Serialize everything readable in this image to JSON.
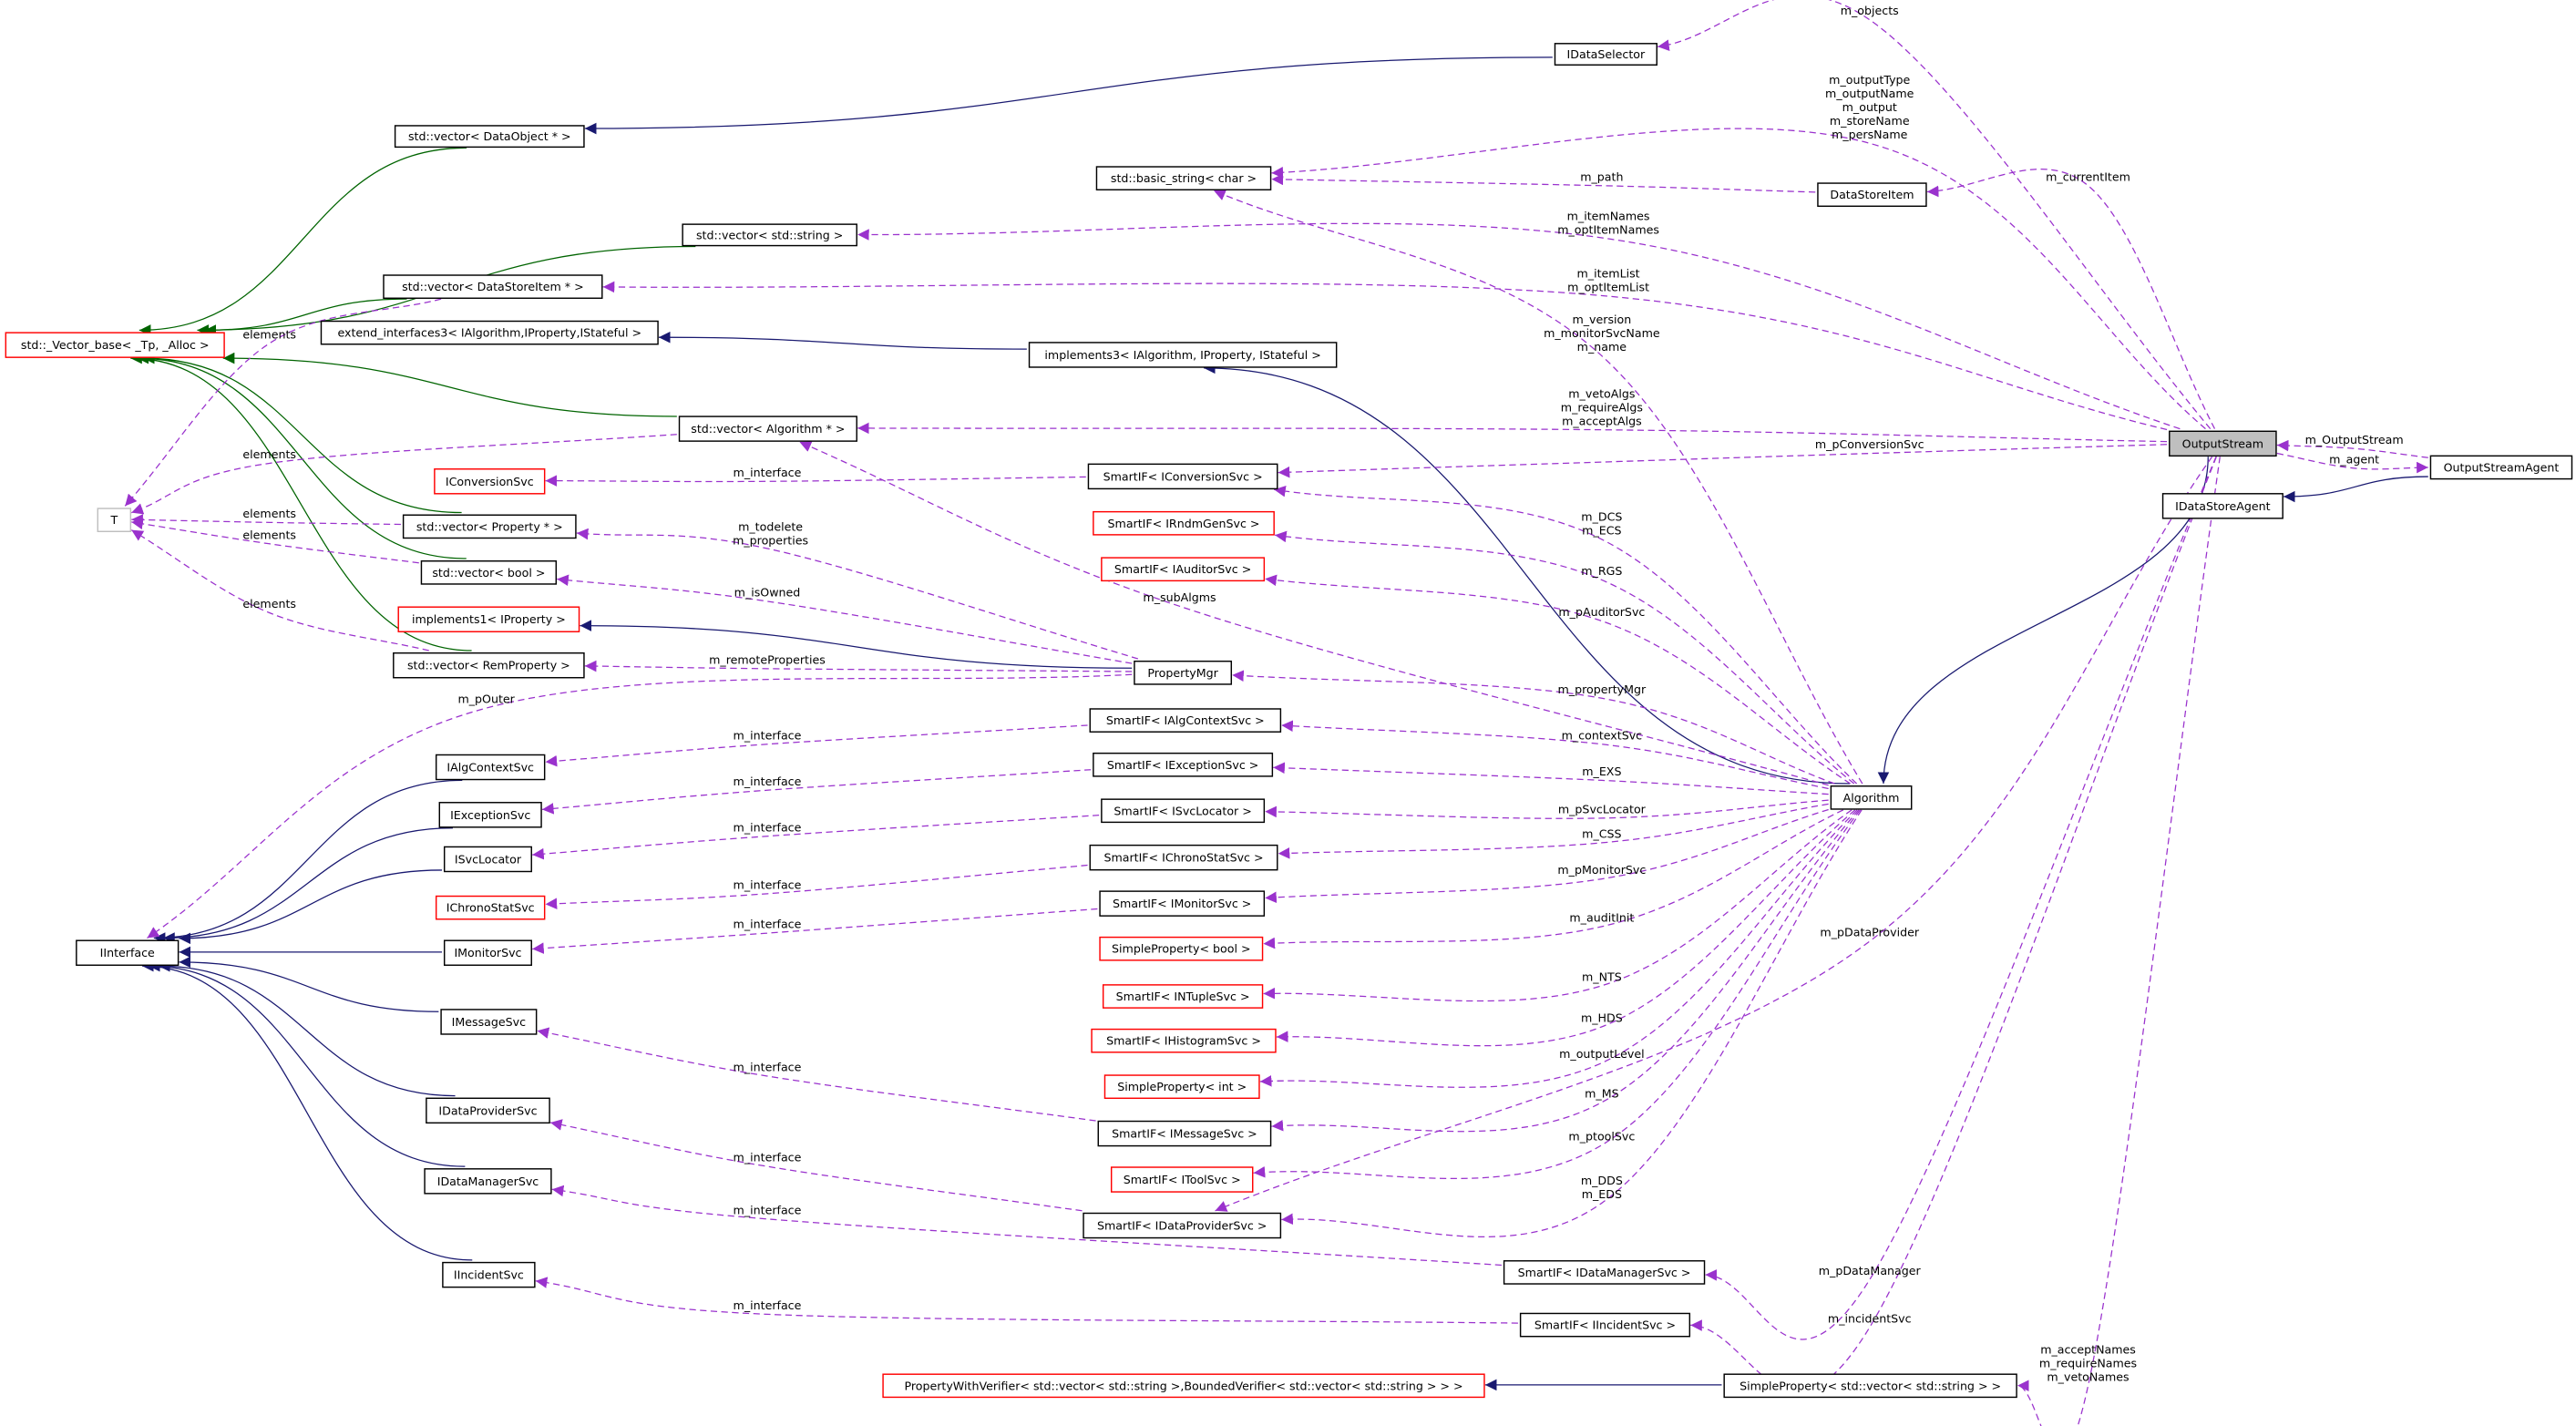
{
  "colors": {
    "inheritance_public": "#191970",
    "inheritance_template": "#006400",
    "usage": "#9a32cd",
    "documented_border": "#000000",
    "undocumented_border": "#ff0000",
    "template_param_border": "#bfbfbf",
    "focus_fill": "#bfbfbf"
  },
  "nodes": [
    {
      "id": "IDataSelector",
      "label": "IDataSelector",
      "style": "doc"
    },
    {
      "id": "vecDataObject",
      "label": "std::vector< DataObject * >",
      "style": "doc"
    },
    {
      "id": "basicString",
      "label": "std::basic_string< char >",
      "style": "doc"
    },
    {
      "id": "DataStoreItem",
      "label": "DataStoreItem",
      "style": "doc"
    },
    {
      "id": "vecString",
      "label": "std::vector< std::string >",
      "style": "doc"
    },
    {
      "id": "vecDataStoreItem",
      "label": "std::vector< DataStoreItem * >",
      "style": "doc"
    },
    {
      "id": "vectorBase",
      "label": "std::_Vector_base< _Tp, _Alloc >",
      "style": "undoc"
    },
    {
      "id": "extendInterfaces3",
      "label": "extend_interfaces3< IAlgorithm,IProperty,IStateful >",
      "style": "doc"
    },
    {
      "id": "implements3",
      "label": "implements3< IAlgorithm, IProperty, IStateful >",
      "style": "doc"
    },
    {
      "id": "vecAlgorithm",
      "label": "std::vector< Algorithm * >",
      "style": "doc"
    },
    {
      "id": "OutputStream",
      "label": "OutputStream",
      "style": "focus"
    },
    {
      "id": "OutputStreamAgent",
      "label": "OutputStreamAgent",
      "style": "doc"
    },
    {
      "id": "IDataStoreAgent",
      "label": "IDataStoreAgent",
      "style": "doc"
    },
    {
      "id": "IConversionSvc",
      "label": "IConversionSvc",
      "style": "undoc"
    },
    {
      "id": "siConversionSvc",
      "label": "SmartIF< IConversionSvc >",
      "style": "doc"
    },
    {
      "id": "T",
      "label": "T",
      "style": "tparam"
    },
    {
      "id": "siRndmGenSvc",
      "label": "SmartIF< IRndmGenSvc >",
      "style": "undoc"
    },
    {
      "id": "vecProperty",
      "label": "std::vector< Property * >",
      "style": "doc"
    },
    {
      "id": "siAuditorSvc",
      "label": "SmartIF< IAuditorSvc >",
      "style": "undoc"
    },
    {
      "id": "vecBool",
      "label": "std::vector< bool >",
      "style": "doc"
    },
    {
      "id": "implements1",
      "label": "implements1< IProperty >",
      "style": "undoc"
    },
    {
      "id": "vecRemProperty",
      "label": "std::vector< RemProperty >",
      "style": "doc"
    },
    {
      "id": "PropertyMgr",
      "label": "PropertyMgr",
      "style": "doc"
    },
    {
      "id": "siAlgContextSvc",
      "label": "SmartIF< IAlgContextSvc >",
      "style": "doc"
    },
    {
      "id": "IAlgContextSvc",
      "label": "IAlgContextSvc",
      "style": "doc"
    },
    {
      "id": "siExceptionSvc",
      "label": "SmartIF< IExceptionSvc >",
      "style": "doc"
    },
    {
      "id": "Algorithm",
      "label": "Algorithm",
      "style": "doc"
    },
    {
      "id": "IExceptionSvc",
      "label": "IExceptionSvc",
      "style": "doc"
    },
    {
      "id": "siSvcLocator",
      "label": "SmartIF< ISvcLocator >",
      "style": "doc"
    },
    {
      "id": "ISvcLocator",
      "label": "ISvcLocator",
      "style": "doc"
    },
    {
      "id": "siChronoStatSvc",
      "label": "SmartIF< IChronoStatSvc >",
      "style": "doc"
    },
    {
      "id": "IChronoStatSvc",
      "label": "IChronoStatSvc",
      "style": "undoc"
    },
    {
      "id": "siMonitorSvc",
      "label": "SmartIF< IMonitorSvc >",
      "style": "doc"
    },
    {
      "id": "IInterface",
      "label": "IInterface",
      "style": "doc"
    },
    {
      "id": "IMonitorSvc",
      "label": "IMonitorSvc",
      "style": "doc"
    },
    {
      "id": "spBool",
      "label": "SimpleProperty< bool >",
      "style": "undoc"
    },
    {
      "id": "siNTupleSvc",
      "label": "SmartIF< INTupleSvc >",
      "style": "undoc"
    },
    {
      "id": "IMessageSvc",
      "label": "IMessageSvc",
      "style": "doc"
    },
    {
      "id": "siHistogramSvc",
      "label": "SmartIF< IHistogramSvc >",
      "style": "undoc"
    },
    {
      "id": "spInt",
      "label": "SimpleProperty< int >",
      "style": "undoc"
    },
    {
      "id": "IDataProviderSvc",
      "label": "IDataProviderSvc",
      "style": "doc"
    },
    {
      "id": "siMessageSvc",
      "label": "SmartIF< IMessageSvc >",
      "style": "doc"
    },
    {
      "id": "siToolSvc",
      "label": "SmartIF< IToolSvc >",
      "style": "undoc"
    },
    {
      "id": "IDataManagerSvc",
      "label": "IDataManagerSvc",
      "style": "doc"
    },
    {
      "id": "siDataProviderSvc",
      "label": "SmartIF< IDataProviderSvc >",
      "style": "doc"
    },
    {
      "id": "siDataManagerSvc",
      "label": "SmartIF< IDataManagerSvc >",
      "style": "doc"
    },
    {
      "id": "IIncidentSvc",
      "label": "IIncidentSvc",
      "style": "doc"
    },
    {
      "id": "siIncidentSvc",
      "label": "SmartIF< IIncidentSvc >",
      "style": "doc"
    },
    {
      "id": "pwVerifier",
      "label": "PropertyWithVerifier< std::vector< std::string >,BoundedVerifier< std::vector< std::string > > >",
      "style": "undoc"
    },
    {
      "id": "spVecString",
      "label": "SimpleProperty< std::vector< std::string > >",
      "style": "doc"
    }
  ],
  "edges": [
    {
      "from": "IDataSelector",
      "to": "vecDataObject",
      "kind": "inherit",
      "label": []
    },
    {
      "from": "vecDataObject",
      "to": "vectorBase",
      "kind": "template",
      "label": []
    },
    {
      "from": "vecString",
      "to": "vectorBase",
      "kind": "template",
      "label": []
    },
    {
      "from": "vecDataStoreItem",
      "to": "vectorBase",
      "kind": "template",
      "label": []
    },
    {
      "from": "vecAlgorithm",
      "to": "vectorBase",
      "kind": "template",
      "label": []
    },
    {
      "from": "vecProperty",
      "to": "vectorBase",
      "kind": "template",
      "label": []
    },
    {
      "from": "vecBool",
      "to": "vectorBase",
      "kind": "template",
      "label": []
    },
    {
      "from": "vecRemProperty",
      "to": "vectorBase",
      "kind": "template",
      "label": []
    },
    {
      "from": "implements3",
      "to": "extendInterfaces3",
      "kind": "inherit",
      "label": []
    },
    {
      "from": "Algorithm",
      "to": "implements3",
      "kind": "inherit",
      "label": []
    },
    {
      "from": "OutputStream",
      "to": "Algorithm",
      "kind": "inherit",
      "label": []
    },
    {
      "from": "OutputStreamAgent",
      "to": "IDataStoreAgent",
      "kind": "inherit",
      "label": []
    },
    {
      "from": "PropertyMgr",
      "to": "implements1",
      "kind": "inherit",
      "label": []
    },
    {
      "from": "IAlgContextSvc",
      "to": "IInterface",
      "kind": "inherit",
      "label": []
    },
    {
      "from": "IExceptionSvc",
      "to": "IInterface",
      "kind": "inherit",
      "label": []
    },
    {
      "from": "ISvcLocator",
      "to": "IInterface",
      "kind": "inherit",
      "label": []
    },
    {
      "from": "IMonitorSvc",
      "to": "IInterface",
      "kind": "inherit",
      "label": []
    },
    {
      "from": "IMessageSvc",
      "to": "IInterface",
      "kind": "inherit",
      "label": []
    },
    {
      "from": "IDataProviderSvc",
      "to": "IInterface",
      "kind": "inherit",
      "label": []
    },
    {
      "from": "IDataManagerSvc",
      "to": "IInterface",
      "kind": "inherit",
      "label": []
    },
    {
      "from": "IIncidentSvc",
      "to": "IInterface",
      "kind": "inherit",
      "label": []
    },
    {
      "from": "spVecString",
      "to": "pwVerifier",
      "kind": "inherit",
      "label": []
    },
    {
      "from": "OutputStream",
      "to": "IDataSelector",
      "kind": "usage",
      "label": [
        "m_objects"
      ]
    },
    {
      "from": "OutputStream",
      "to": "basicString",
      "kind": "usage",
      "label": [
        "m_outputType",
        "m_outputName",
        "m_output",
        "m_storeName",
        "m_persName"
      ]
    },
    {
      "from": "DataStoreItem",
      "to": "basicString",
      "kind": "usage",
      "label": [
        "m_path"
      ]
    },
    {
      "from": "OutputStream",
      "to": "DataStoreItem",
      "kind": "usage",
      "label": [
        "m_currentItem"
      ]
    },
    {
      "from": "OutputStream",
      "to": "vecString",
      "kind": "usage",
      "label": [
        "m_itemNames",
        "m_optItemNames"
      ]
    },
    {
      "from": "OutputStream",
      "to": "vecDataStoreItem",
      "kind": "usage",
      "label": [
        "m_itemList",
        "m_optItemList"
      ]
    },
    {
      "from": "Algorithm",
      "to": "basicString",
      "kind": "usage",
      "label": [
        "m_version",
        "m_monitorSvcName",
        "m_name"
      ]
    },
    {
      "from": "OutputStream",
      "to": "vecAlgorithm",
      "kind": "usage",
      "label": [
        "m_vetoAlgs",
        "m_requireAlgs",
        "m_acceptAlgs"
      ]
    },
    {
      "from": "OutputStream",
      "to": "siConversionSvc",
      "kind": "usage",
      "label": [
        "m_pConversionSvc"
      ]
    },
    {
      "from": "siConversionSvc",
      "to": "IConversionSvc",
      "kind": "usage",
      "label": [
        "m_interface"
      ]
    },
    {
      "from": "OutputStreamAgent",
      "to": "OutputStream",
      "kind": "usage",
      "label": [
        "m_OutputStream"
      ]
    },
    {
      "from": "OutputStream",
      "to": "OutputStreamAgent",
      "kind": "usage",
      "label": [
        "m_agent"
      ]
    },
    {
      "from": "vecDataStoreItem",
      "to": "T",
      "kind": "usage",
      "label": [
        "elements"
      ]
    },
    {
      "from": "vecAlgorithm",
      "to": "T",
      "kind": "usage",
      "label": [
        "elements"
      ]
    },
    {
      "from": "vecProperty",
      "to": "T",
      "kind": "usage",
      "label": [
        "elements"
      ]
    },
    {
      "from": "vecBool",
      "to": "T",
      "kind": "usage",
      "label": [
        "elements"
      ]
    },
    {
      "from": "vecRemProperty",
      "to": "T",
      "kind": "usage",
      "label": [
        "elements"
      ]
    },
    {
      "from": "Algorithm",
      "to": "siConversionSvc",
      "kind": "usage",
      "label": [
        "m_DCS",
        "m_ECS"
      ]
    },
    {
      "from": "Algorithm",
      "to": "siRndmGenSvc",
      "kind": "usage",
      "label": [
        "m_RGS"
      ]
    },
    {
      "from": "Algorithm",
      "to": "siAuditorSvc",
      "kind": "usage",
      "label": [
        "m_pAuditorSvc"
      ]
    },
    {
      "from": "Algorithm",
      "to": "vecAlgorithm",
      "kind": "usage",
      "label": [
        "m_subAlgms"
      ]
    },
    {
      "from": "PropertyMgr",
      "to": "vecProperty",
      "kind": "usage",
      "label": [
        "m_todelete",
        "m_properties"
      ]
    },
    {
      "from": "PropertyMgr",
      "to": "vecBool",
      "kind": "usage",
      "label": [
        "m_isOwned"
      ]
    },
    {
      "from": "PropertyMgr",
      "to": "vecRemProperty",
      "kind": "usage",
      "label": [
        "m_remoteProperties"
      ]
    },
    {
      "from": "PropertyMgr",
      "to": "IInterface",
      "kind": "usage",
      "label": [
        "m_pOuter"
      ]
    },
    {
      "from": "Algorithm",
      "to": "PropertyMgr",
      "kind": "usage",
      "label": [
        "m_propertyMgr"
      ]
    },
    {
      "from": "Algorithm",
      "to": "siAlgContextSvc",
      "kind": "usage",
      "label": [
        "m_contextSvc"
      ]
    },
    {
      "from": "siAlgContextSvc",
      "to": "IAlgContextSvc",
      "kind": "usage",
      "label": [
        "m_interface"
      ]
    },
    {
      "from": "Algorithm",
      "to": "siExceptionSvc",
      "kind": "usage",
      "label": [
        "m_EXS"
      ]
    },
    {
      "from": "siExceptionSvc",
      "to": "IExceptionSvc",
      "kind": "usage",
      "label": [
        "m_interface"
      ]
    },
    {
      "from": "Algorithm",
      "to": "siSvcLocator",
      "kind": "usage",
      "label": [
        "m_pSvcLocator"
      ]
    },
    {
      "from": "siSvcLocator",
      "to": "ISvcLocator",
      "kind": "usage",
      "label": [
        "m_interface"
      ]
    },
    {
      "from": "Algorithm",
      "to": "siChronoStatSvc",
      "kind": "usage",
      "label": [
        "m_CSS"
      ]
    },
    {
      "from": "siChronoStatSvc",
      "to": "IChronoStatSvc",
      "kind": "usage",
      "label": [
        "m_interface"
      ]
    },
    {
      "from": "Algorithm",
      "to": "siMonitorSvc",
      "kind": "usage",
      "label": [
        "m_pMonitorSvc"
      ]
    },
    {
      "from": "siMonitorSvc",
      "to": "IMonitorSvc",
      "kind": "usage",
      "label": [
        "m_interface"
      ]
    },
    {
      "from": "Algorithm",
      "to": "spBool",
      "kind": "usage",
      "label": [
        "m_auditInit"
      ]
    },
    {
      "from": "Algorithm",
      "to": "siNTupleSvc",
      "kind": "usage",
      "label": [
        "m_NTS"
      ]
    },
    {
      "from": "Algorithm",
      "to": "siHistogramSvc",
      "kind": "usage",
      "label": [
        "m_HDS"
      ]
    },
    {
      "from": "Algorithm",
      "to": "spInt",
      "kind": "usage",
      "label": [
        "m_outputLevel"
      ]
    },
    {
      "from": "Algorithm",
      "to": "siMessageSvc",
      "kind": "usage",
      "label": [
        "m_MS"
      ]
    },
    {
      "from": "siMessageSvc",
      "to": "IMessageSvc",
      "kind": "usage",
      "label": [
        "m_interface"
      ]
    },
    {
      "from": "Algorithm",
      "to": "siToolSvc",
      "kind": "usage",
      "label": [
        "m_ptoolSvc"
      ]
    },
    {
      "from": "Algorithm",
      "to": "siDataProviderSvc",
      "kind": "usage",
      "label": [
        "m_DDS",
        "m_EDS"
      ]
    },
    {
      "from": "siDataProviderSvc",
      "to": "IDataProviderSvc",
      "kind": "usage",
      "label": [
        "m_interface"
      ]
    },
    {
      "from": "OutputStream",
      "to": "siDataProviderSvc",
      "kind": "usage",
      "label": [
        "m_pDataProvider"
      ]
    },
    {
      "from": "OutputStream",
      "to": "siDataManagerSvc",
      "kind": "usage",
      "label": [
        "m_pDataManager"
      ]
    },
    {
      "from": "siDataManagerSvc",
      "to": "IDataManagerSvc",
      "kind": "usage",
      "label": [
        "m_interface"
      ]
    },
    {
      "from": "OutputStream",
      "to": "siIncidentSvc",
      "kind": "usage",
      "label": [
        "m_incidentSvc"
      ]
    },
    {
      "from": "siIncidentSvc",
      "to": "IIncidentSvc",
      "kind": "usage",
      "label": [
        "m_interface"
      ]
    },
    {
      "from": "OutputStream",
      "to": "spVecString",
      "kind": "usage",
      "label": [
        "m_acceptNames",
        "m_requireNames",
        "m_vetoNames"
      ]
    }
  ]
}
